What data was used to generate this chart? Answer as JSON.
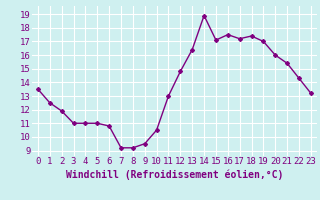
{
  "x": [
    0,
    1,
    2,
    3,
    4,
    5,
    6,
    7,
    8,
    9,
    10,
    11,
    12,
    13,
    14,
    15,
    16,
    17,
    18,
    19,
    20,
    21,
    22,
    23
  ],
  "y": [
    13.5,
    12.5,
    11.9,
    11.0,
    11.0,
    11.0,
    10.8,
    9.2,
    9.2,
    9.5,
    10.5,
    13.0,
    14.8,
    16.4,
    18.9,
    17.1,
    17.5,
    17.2,
    17.4,
    17.0,
    16.0,
    15.4,
    14.3,
    13.2
  ],
  "line_color": "#800080",
  "marker": "D",
  "marker_size": 2.0,
  "xlabel": "Windchill (Refroidissement éolien,°C)",
  "xlabel_fontsize": 7,
  "yticks": [
    9,
    10,
    11,
    12,
    13,
    14,
    15,
    16,
    17,
    18,
    19
  ],
  "xlim": [
    -0.5,
    23.5
  ],
  "ylim": [
    8.6,
    19.6
  ],
  "bg_color": "#cff0f0",
  "grid_color": "#ffffff",
  "tick_color": "#800080",
  "tick_fontsize": 6.5,
  "line_width": 1.0
}
